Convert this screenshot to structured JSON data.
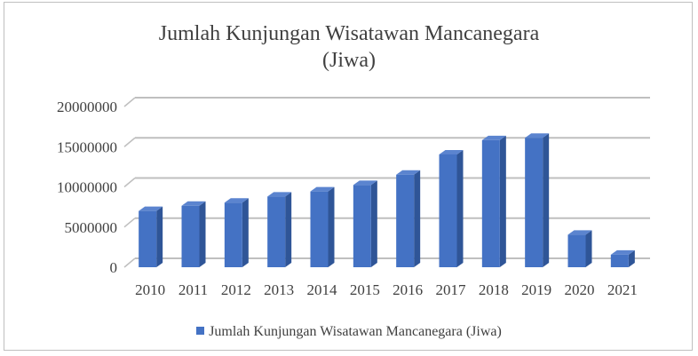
{
  "chart_data": {
    "type": "bar",
    "title": "Jumlah Kunjungan Wisatawan Mancanegara",
    "subtitle": "(Jiwa)",
    "xlabel": "",
    "ylabel": "",
    "categories": [
      "2010",
      "2011",
      "2012",
      "2013",
      "2014",
      "2015",
      "2016",
      "2017",
      "2018",
      "2019",
      "2020",
      "2021"
    ],
    "series": [
      {
        "name": "Jumlah Kunjungan Wisatawan Mancanegara (Jiwa)",
        "values": [
          7000000,
          7650000,
          8040000,
          8800000,
          9430000,
          10230000,
          11520000,
          14040000,
          15810000,
          16110000,
          4050000,
          1560000
        ]
      }
    ],
    "yticks": [
      "0",
      "5000000",
      "10000000",
      "15000000",
      "20000000"
    ],
    "ylim": [
      0,
      20000000
    ],
    "grid": true,
    "legend": "bottom",
    "style": "3d-column",
    "colors": {
      "bar": "#4472c4",
      "bar_side": "#2f5597",
      "bar_top": "#5b84cf",
      "grid": "#bfbfbf",
      "text": "#404040"
    }
  }
}
